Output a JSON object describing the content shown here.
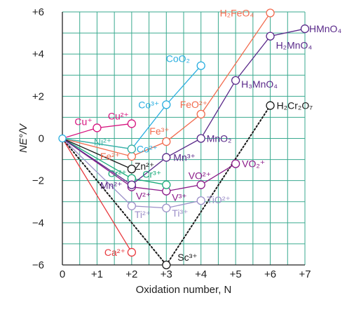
{
  "chart_data": {
    "type": "line",
    "title": "",
    "xlabel": "Oxidation number, N",
    "ylabel": "NE°/V",
    "xlim": [
      0,
      7
    ],
    "ylim": [
      -6,
      6
    ],
    "xticks": [
      "0",
      "+1",
      "+2",
      "+3",
      "+4",
      "+5",
      "+6",
      "+7"
    ],
    "yticks": [
      "−6",
      "−4",
      "−2",
      "0",
      "+2",
      "+4",
      "+6"
    ],
    "grid": true,
    "grid_color": "#3aaa8f",
    "series": [
      {
        "color": "#e8383d",
        "points": [
          {
            "x": 0,
            "y": 0
          },
          {
            "x": 2,
            "y": -5.4,
            "label": "Ca²⁺"
          }
        ]
      },
      {
        "color": "#1a1a1a",
        "dotted": true,
        "points": [
          {
            "x": 0,
            "y": 0
          },
          {
            "x": 3,
            "y": -6.0,
            "label": "Sc³⁺"
          }
        ]
      },
      {
        "color": "#1a1a1a",
        "dotted": true,
        "points": [
          {
            "x": 3,
            "y": -6.0
          },
          {
            "x": 6,
            "y": 1.56,
            "label": "H₂Cr₂O₇"
          }
        ]
      },
      {
        "color": "#9b8fc8",
        "points": [
          {
            "x": 0,
            "y": 0
          },
          {
            "x": 2,
            "y": -3.2,
            "label": "Ti²⁺"
          },
          {
            "x": 3,
            "y": -3.3,
            "label": "Ti³⁺"
          },
          {
            "x": 4,
            "y": -2.95,
            "label": "TiO²⁺"
          }
        ]
      },
      {
        "color": "#8b1a89",
        "points": [
          {
            "x": 0,
            "y": 0
          },
          {
            "x": 2,
            "y": -2.3,
            "label": "V²⁺"
          },
          {
            "x": 3,
            "y": -2.5,
            "label": "V³⁺"
          },
          {
            "x": 4,
            "y": -2.2,
            "label": "VO²⁺"
          },
          {
            "x": 5,
            "y": -1.2,
            "label": "VO₂⁺"
          }
        ]
      },
      {
        "color": "#1aaa7a",
        "points": [
          {
            "x": 0,
            "y": 0
          },
          {
            "x": 2,
            "y": -1.9,
            "label": "Cr²⁺"
          },
          {
            "x": 3,
            "y": -2.2,
            "label": "Cr³⁺"
          }
        ]
      },
      {
        "color": "#5a2a8a",
        "points": [
          {
            "x": 0,
            "y": 0
          },
          {
            "x": 2,
            "y": -2.2,
            "label": "Mn²⁺"
          },
          {
            "x": 3,
            "y": -0.9,
            "label": "Mn³⁺"
          },
          {
            "x": 4,
            "y": 0.0,
            "label": "MnO₂"
          },
          {
            "x": 5,
            "y": 2.75,
            "label": "H₃MnO₄"
          },
          {
            "x": 6,
            "y": 4.85,
            "label": "H₂MnO₄"
          },
          {
            "x": 7,
            "y": 5.2,
            "label": "HMnO₄"
          }
        ]
      },
      {
        "color": "#f26b4e",
        "points": [
          {
            "x": 0,
            "y": 0
          },
          {
            "x": 2,
            "y": -0.85,
            "label": "Fe²⁺"
          },
          {
            "x": 3,
            "y": -0.15,
            "label": "Fe³⁺"
          },
          {
            "x": 4,
            "y": 1.15,
            "label": "FeO²⁺"
          },
          {
            "x": 6,
            "y": 5.95,
            "label": "H₂FeO₄"
          }
        ]
      },
      {
        "color": "#29aee0",
        "points": [
          {
            "x": 0,
            "y": 0
          },
          {
            "x": 2,
            "y": -0.5,
            "label": "Co²⁺"
          },
          {
            "x": 3,
            "y": 1.6,
            "label": "Co³⁺"
          },
          {
            "x": 4,
            "y": 3.45,
            "label": "CoO₂"
          }
        ]
      },
      {
        "color": "#1a1a1a",
        "points": [
          {
            "x": 0,
            "y": 0
          },
          {
            "x": 2,
            "y": -1.45,
            "label": "Zn²⁺"
          }
        ]
      },
      {
        "color": "#3fb3a3",
        "points": [
          {
            "x": 0,
            "y": 0
          },
          {
            "x": 2,
            "y": -0.5,
            "label": "Ni²⁺"
          }
        ]
      },
      {
        "color": "#d6127e",
        "points": [
          {
            "x": 0,
            "y": 0
          },
          {
            "x": 1,
            "y": 0.5,
            "label": "Cu⁺"
          },
          {
            "x": 2,
            "y": 0.7,
            "label": "Cu²⁺"
          }
        ]
      }
    ]
  }
}
